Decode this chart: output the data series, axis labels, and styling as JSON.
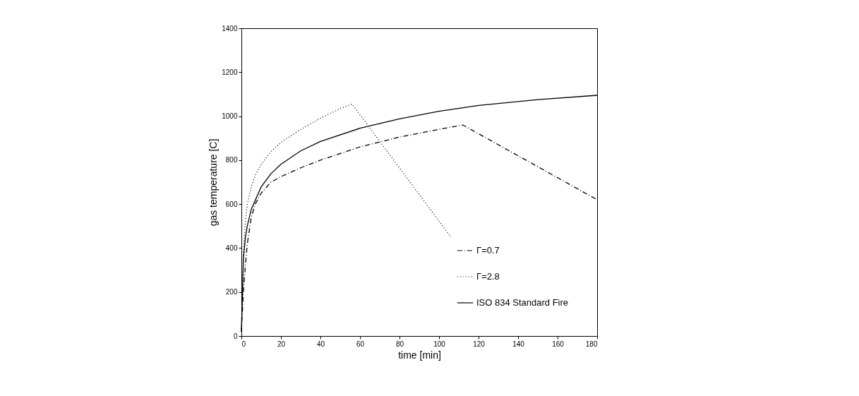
{
  "chart_data": {
    "type": "line",
    "xlabel": "time [min]",
    "ylabel": "gas temperature [C]",
    "xlim": [
      0,
      180
    ],
    "ylim": [
      0,
      1400
    ],
    "xticks": [
      0,
      20,
      40,
      60,
      80,
      100,
      120,
      140,
      160,
      180
    ],
    "yticks": [
      0,
      200,
      400,
      600,
      800,
      1000,
      1200,
      1400
    ],
    "grid": false,
    "legend": "bottom right",
    "marker": "none",
    "series": [
      {
        "name": "Γ=0.7",
        "color": "#000000",
        "line_style": "dashed",
        "x": [
          0,
          1,
          2,
          3,
          5,
          7,
          10,
          15,
          20,
          30,
          40,
          60,
          80,
          100,
          112,
          180
        ],
        "values": [
          20,
          200,
          320,
          420,
          540,
          600,
          650,
          700,
          725,
          765,
          800,
          860,
          905,
          940,
          960,
          620
        ]
      },
      {
        "name": "Γ=2.8",
        "color": "#000000",
        "line_style": "dotted",
        "x": [
          0,
          1,
          2,
          3,
          5,
          7,
          10,
          15,
          20,
          30,
          40,
          50,
          56,
          106
        ],
        "values": [
          20,
          380,
          520,
          600,
          680,
          730,
          780,
          840,
          880,
          940,
          990,
          1035,
          1055,
          450
        ]
      },
      {
        "name": "ISO 834 Standard Fire",
        "color": "#000000",
        "line_style": "solid",
        "x": [
          0,
          1,
          2,
          3,
          5,
          10,
          15,
          20,
          30,
          40,
          60,
          80,
          100,
          120,
          150,
          180
        ],
        "values": [
          20,
          349,
          445,
          502,
          576,
          678,
          739,
          781,
          842,
          885,
          945,
          988,
          1022,
          1049,
          1075,
          1095
        ]
      }
    ]
  }
}
